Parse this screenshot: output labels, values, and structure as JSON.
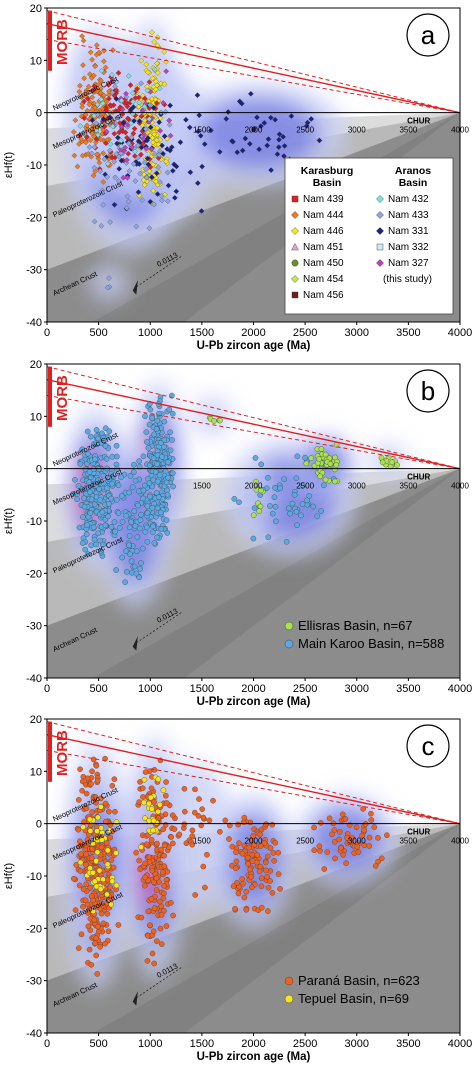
{
  "colors": {
    "morb_red": "#e02020",
    "chur_line": "#e02020",
    "dashed_line": "#e02020",
    "band_light": "#dcdcdc",
    "band_mid": "#b9b9b9",
    "band_dark": "#8c8c8c",
    "kde_outer": "#c7cdf5",
    "kde_mid": "#6a72e0",
    "kde_core": "#e03aa0",
    "ellisras": "#a9e34b",
    "main_karoo": "#5aa9e6",
    "parana": "#f0601e",
    "tepuel": "#f7e51b"
  },
  "common": {
    "ylabel": "εHf(t)",
    "xlabel": "U-Pb zircon age (Ma)",
    "morb_label": "MORB",
    "chur_label": "CHUR",
    "slope_label": "0.0113",
    "crust_labels": [
      "Neoproterozoic Crust",
      "Mesoproterozoic Crust",
      "Paleoproterozoic Crust",
      "Archean Crust"
    ],
    "y_ticks": [
      "20",
      "10",
      "0",
      "-10",
      "-20",
      "-30",
      "-40"
    ],
    "x_ticks_bottom": [
      "0",
      "500",
      "1000",
      "1500",
      "2000",
      "2500",
      "3000",
      "3500",
      "4000"
    ],
    "x_ticks_inline": [
      "1500",
      "2000",
      "2500",
      "3000",
      "3500",
      "4000"
    ]
  },
  "chart_data": [
    {
      "panel": "a",
      "type": "scatter",
      "xlabel": "U-Pb zircon age (Ma)",
      "ylabel": "εHf(t)",
      "xlim": [
        0,
        4000
      ],
      "ylim": [
        -40,
        20
      ],
      "legend": {
        "position": "right",
        "col1_title": "Karasburg Basin",
        "col2_title": "Aranos Basin",
        "col1": [
          {
            "name": "Nam 439",
            "color": "#e02020",
            "marker": "square"
          },
          {
            "name": "Nam 444",
            "color": "#f07a1e",
            "marker": "diamond"
          },
          {
            "name": "Nam 446",
            "color": "#f7e51b",
            "marker": "diamond"
          },
          {
            "name": "Nam 451",
            "color": "#f2a0c8",
            "marker": "triangle"
          },
          {
            "name": "Nam 450",
            "color": "#6b8e23",
            "marker": "circle"
          },
          {
            "name": "Nam 454",
            "color": "#c6e84a",
            "marker": "diamond"
          },
          {
            "name": "Nam 456",
            "color": "#6b1f1f",
            "marker": "square"
          }
        ],
        "col2": [
          {
            "name": "Nam 432",
            "color": "#7fe0e0",
            "marker": "diamond"
          },
          {
            "name": "Nam 433",
            "color": "#8fa6e0",
            "marker": "diamond"
          },
          {
            "name": "Nam 331",
            "color": "#1a237e",
            "marker": "diamond"
          },
          {
            "name": "Nam 332",
            "color": "#cfe8f5",
            "marker": "square"
          },
          {
            "name": "Nam 327",
            "color": "#c040c0",
            "marker": "diamond"
          },
          {
            "name": "(this study)",
            "color": "",
            "marker": "none"
          }
        ]
      },
      "clusters": [
        {
          "x": [
            250,
            700
          ],
          "y": [
            -15,
            15
          ],
          "n": 160,
          "color": "#f07a1e"
        },
        {
          "x": [
            850,
            1200
          ],
          "y": [
            -18,
            16
          ],
          "n": 140,
          "color": "#f7e51b"
        },
        {
          "x": [
            300,
            1200
          ],
          "y": [
            -12,
            10
          ],
          "n": 90,
          "color": "#e02020"
        },
        {
          "x": [
            400,
            1600
          ],
          "y": [
            -20,
            6
          ],
          "n": 70,
          "color": "#1a237e"
        },
        {
          "x": [
            300,
            1300
          ],
          "y": [
            -25,
            8
          ],
          "n": 70,
          "color": "#8fa6e0"
        },
        {
          "x": [
            1300,
            2800
          ],
          "y": [
            -12,
            4
          ],
          "n": 40,
          "color": "#1a237e"
        },
        {
          "x": [
            400,
            1400
          ],
          "y": [
            -15,
            10
          ],
          "n": 30,
          "color": "#c040c0"
        },
        {
          "x": [
            300,
            1200
          ],
          "y": [
            -10,
            12
          ],
          "n": 30,
          "color": "#7fe0e0"
        },
        {
          "x": [
            500,
            700
          ],
          "y": [
            -34,
            -31
          ],
          "n": 3,
          "color": "#8fa6e0"
        }
      ]
    },
    {
      "panel": "b",
      "type": "scatter",
      "xlabel": "U-Pb zircon age (Ma)",
      "ylabel": "εHf(t)",
      "xlim": [
        0,
        4000
      ],
      "ylim": [
        -40,
        20
      ],
      "legend": {
        "position": "bottom-right",
        "entries": [
          {
            "name": "Ellisras Basin, n=67",
            "color": "#a9e34b"
          },
          {
            "name": "Main Karoo Basin, n=588",
            "color": "#5aa9e6"
          }
        ]
      },
      "clusters": [
        {
          "x": [
            250,
            700
          ],
          "y": [
            -18,
            10
          ],
          "n": 230,
          "color": "#5aa9e6"
        },
        {
          "x": [
            900,
            1250
          ],
          "y": [
            -15,
            15
          ],
          "n": 230,
          "color": "#5aa9e6"
        },
        {
          "x": [
            600,
            1100
          ],
          "y": [
            -25,
            4
          ],
          "n": 80,
          "color": "#5aa9e6"
        },
        {
          "x": [
            1800,
            2900
          ],
          "y": [
            -15,
            4
          ],
          "n": 48,
          "color": "#5aa9e6"
        },
        {
          "x": [
            2000,
            2100
          ],
          "y": [
            -10,
            -1
          ],
          "n": 10,
          "color": "#a9e34b"
        },
        {
          "x": [
            2500,
            2900
          ],
          "y": [
            -3,
            5
          ],
          "n": 40,
          "color": "#a9e34b"
        },
        {
          "x": [
            3200,
            3400
          ],
          "y": [
            0,
            3
          ],
          "n": 12,
          "color": "#a9e34b"
        },
        {
          "x": [
            1500,
            1700
          ],
          "y": [
            8,
            12
          ],
          "n": 5,
          "color": "#a9e34b"
        }
      ]
    },
    {
      "panel": "c",
      "type": "scatter",
      "xlabel": "U-Pb zircon age (Ma)",
      "ylabel": "εHf(t)",
      "xlim": [
        0,
        4000
      ],
      "ylim": [
        -40,
        20
      ],
      "legend": {
        "position": "bottom-right",
        "entries": [
          {
            "name": "Paraná Basin, n=623",
            "color": "#f0601e"
          },
          {
            "name": "Tepuel Basin, n=69",
            "color": "#f7e51b"
          }
        ]
      },
      "clusters": [
        {
          "x": [
            250,
            700
          ],
          "y": [
            -30,
            14
          ],
          "n": 260,
          "color": "#f0601e"
        },
        {
          "x": [
            850,
            1250
          ],
          "y": [
            -28,
            15
          ],
          "n": 170,
          "color": "#f0601e"
        },
        {
          "x": [
            1700,
            2300
          ],
          "y": [
            -18,
            4
          ],
          "n": 110,
          "color": "#f0601e"
        },
        {
          "x": [
            2500,
            3300
          ],
          "y": [
            -10,
            4
          ],
          "n": 55,
          "color": "#f0601e"
        },
        {
          "x": [
            1200,
            1700
          ],
          "y": [
            -15,
            10
          ],
          "n": 28,
          "color": "#f0601e"
        },
        {
          "x": [
            300,
            700
          ],
          "y": [
            -20,
            6
          ],
          "n": 45,
          "color": "#f7e51b"
        },
        {
          "x": [
            900,
            1150
          ],
          "y": [
            -5,
            10
          ],
          "n": 24,
          "color": "#f7e51b"
        }
      ]
    }
  ]
}
